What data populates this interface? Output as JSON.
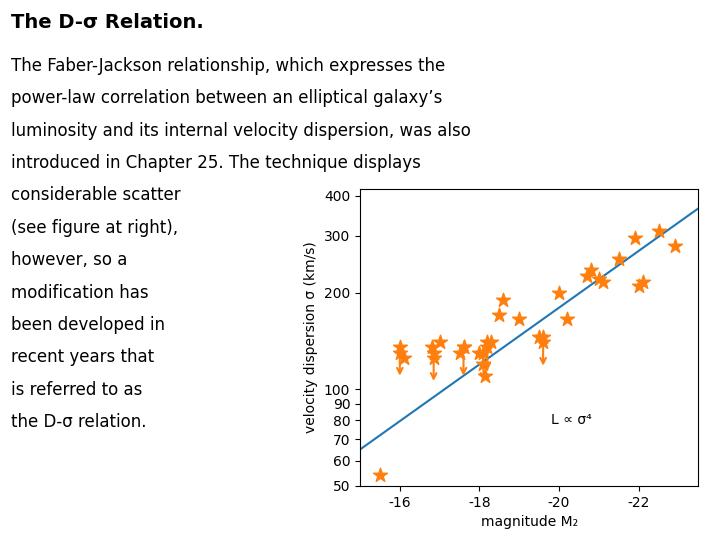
{
  "chart_data": {
    "type": "scatter",
    "title": "The D-σ Relation.",
    "text": [
      "The Faber-Jackson relationship, which expresses the",
      "power-law correlation between an elliptical galaxy’s",
      "luminosity and its internal velocity dispersion, was also",
      "introduced in Chapter 25. The technique displays",
      "considerable scatter",
      "(see figure at right),",
      "however, so a",
      "modification has",
      "been developed in",
      "recent years that",
      "is referred to as",
      "the D-σ relation."
    ],
    "xlabel": "magnitude M₂",
    "ylabel": "velocity dispersion σ (km/s)",
    "log": "y",
    "xlim": [
      -15.0,
      -23.5
    ],
    "ylim": [
      50,
      420
    ],
    "xticks": [
      -16,
      -18,
      -20,
      -22
    ],
    "yticks": [
      50,
      60,
      70,
      80,
      90,
      100,
      200,
      300,
      400
    ],
    "annotations": [
      {
        "text": "L ∝ σ⁴",
        "x": -19.8,
        "y": 78
      }
    ],
    "series": [
      {
        "type": "line",
        "color": "#1f77b4",
        "x": [
          -15.0,
          -23.5
        ],
        "values": [
          64.94,
          365.64
        ]
      },
      {
        "type": "scatter",
        "marker": "star",
        "color": "#ff7f0e",
        "x": [
          -15.5,
          -16.0,
          -16.1,
          -16.8,
          -16.85,
          -17.0,
          -17.5,
          -17.6,
          -18.0,
          -18.1,
          -18.15,
          -18.2,
          -18.3,
          -18.5,
          -18.6,
          -19.0,
          -19.5,
          -19.6,
          -20.0,
          -20.2,
          -20.7,
          -20.8,
          -21.0,
          -21.1,
          -21.5,
          -21.9,
          -22.0,
          -22.1,
          -22.5,
          -22.9
        ],
        "values": [
          54,
          130,
          125,
          135,
          125,
          140,
          130,
          135,
          130,
          120,
          110,
          135,
          140,
          170,
          190,
          165,
          145,
          140,
          200,
          165,
          225,
          235,
          220,
          215,
          255,
          295,
          210,
          215,
          310,
          280
        ]
      },
      {
        "type": "upper_limit",
        "marker": "star",
        "color": "#ff7f0e",
        "x": [
          -16.0,
          -16.85,
          -17.6,
          -18.1,
          -18.2,
          -19.6
        ],
        "values": [
          135,
          130,
          135,
          130,
          140,
          145
        ]
      }
    ]
  }
}
